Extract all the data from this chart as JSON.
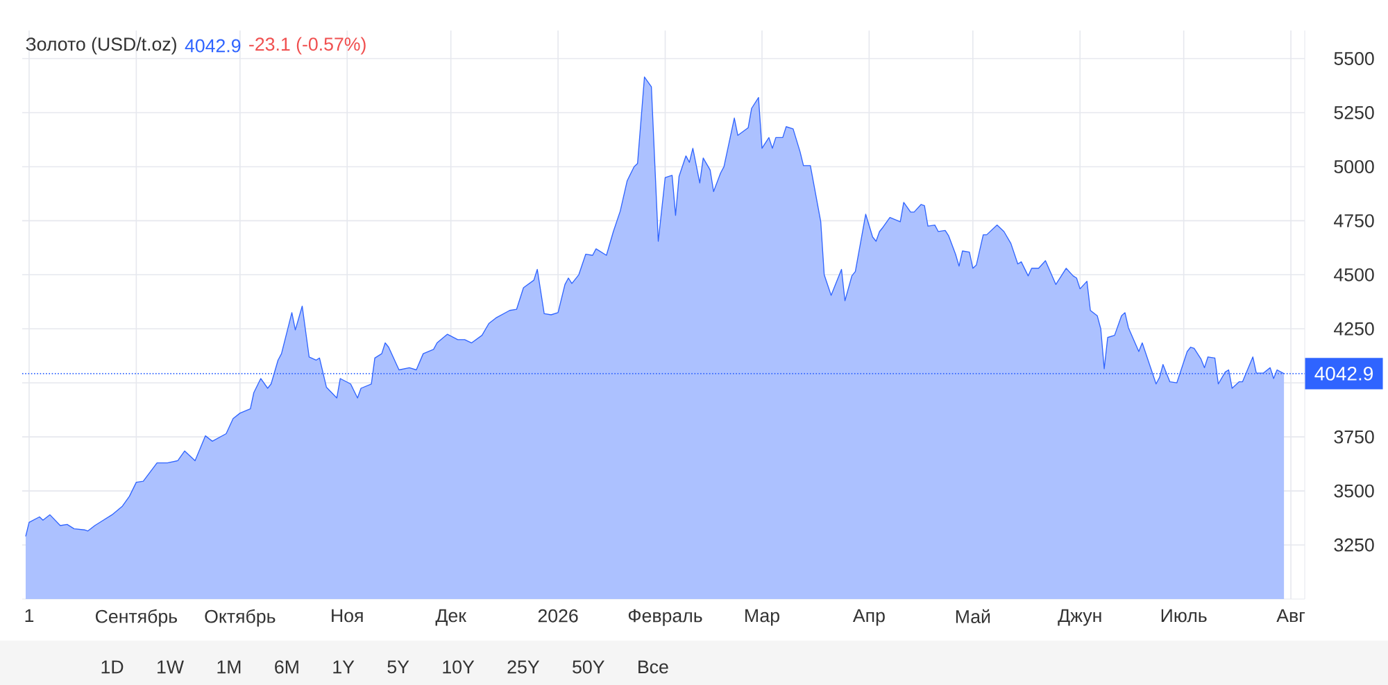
{
  "chart_data": {
    "type": "area",
    "title": "Золото (USD/t.oz)",
    "annotations": [
      "4042.9",
      "-23.1 (-0.57%)",
      "1D",
      "1W",
      "1M",
      "6M",
      "1Y",
      "5Y",
      "10Y",
      "25Y",
      "50Y",
      "Все"
    ],
    "x": [
      "2025-07-31",
      "2025-08-01",
      "2025-08-04",
      "2025-08-05",
      "2025-08-07",
      "2025-08-10",
      "2025-08-12",
      "2025-08-14",
      "2025-08-17",
      "2025-08-18",
      "2025-08-20",
      "2025-08-22",
      "2025-08-25",
      "2025-08-28",
      "2025-08-30",
      "2025-09-01",
      "2025-09-03",
      "2025-09-07",
      "2025-09-10",
      "2025-09-13",
      "2025-09-15",
      "2025-09-18",
      "2025-09-21",
      "2025-09-23",
      "2025-09-27",
      "2025-09-29",
      "2025-10-01",
      "2025-10-04",
      "2025-10-05",
      "2025-10-07",
      "2025-10-09",
      "2025-10-10",
      "2025-10-12",
      "2025-10-13",
      "2025-10-16",
      "2025-10-17",
      "2025-10-19",
      "2025-10-21",
      "2025-10-23",
      "2025-10-24",
      "2025-10-26",
      "2025-10-29",
      "2025-10-30",
      "2025-11-02",
      "2025-11-04",
      "2025-11-05",
      "2025-11-08",
      "2025-11-09",
      "2025-11-11",
      "2025-11-12",
      "2025-11-13",
      "2025-11-16",
      "2025-11-19",
      "2025-11-21",
      "2025-11-23",
      "2025-11-26",
      "2025-11-27",
      "2025-11-30",
      "2025-12-03",
      "2025-12-05",
      "2025-12-07",
      "2025-12-10",
      "2025-12-12",
      "2025-12-14",
      "2025-12-18",
      "2025-12-20",
      "2025-12-22",
      "2025-12-25",
      "2025-12-26",
      "2025-12-28",
      "2025-12-30",
      "2026-01-01",
      "2026-01-03",
      "2026-01-04",
      "2026-01-05",
      "2026-01-07",
      "2026-01-09",
      "2026-01-11",
      "2026-01-12",
      "2026-01-15",
      "2026-01-17",
      "2026-01-19",
      "2026-01-21",
      "2026-01-23",
      "2026-01-24",
      "2026-01-26",
      "2026-01-28",
      "2026-01-30",
      "2026-02-01",
      "2026-02-03",
      "2026-02-04",
      "2026-02-05",
      "2026-02-07",
      "2026-02-08",
      "2026-02-09",
      "2026-02-11",
      "2026-02-12",
      "2026-02-14",
      "2026-02-15",
      "2026-02-17",
      "2026-02-18",
      "2026-02-21",
      "2026-02-22",
      "2026-02-25",
      "2026-02-26",
      "2026-02-28",
      "2026-03-01",
      "2026-03-03",
      "2026-03-04",
      "2026-03-05",
      "2026-03-07",
      "2026-03-08",
      "2026-03-10",
      "2026-03-12",
      "2026-03-13",
      "2026-03-15",
      "2026-03-18",
      "2026-03-19",
      "2026-03-21",
      "2026-03-24",
      "2026-03-25",
      "2026-03-27",
      "2026-03-28",
      "2026-03-31",
      "2026-04-02",
      "2026-04-03",
      "2026-04-04",
      "2026-04-05",
      "2026-04-07",
      "2026-04-10",
      "2026-04-11",
      "2026-04-13",
      "2026-04-14",
      "2026-04-16",
      "2026-04-17",
      "2026-04-18",
      "2026-04-20",
      "2026-04-21",
      "2026-04-23",
      "2026-04-24",
      "2026-04-26",
      "2026-04-27",
      "2026-04-28",
      "2026-04-30",
      "2026-05-01",
      "2026-05-02",
      "2026-05-04",
      "2026-05-05",
      "2026-05-08",
      "2026-05-10",
      "2026-05-12",
      "2026-05-14",
      "2026-05-15",
      "2026-05-17",
      "2026-05-18",
      "2026-05-20",
      "2026-05-22",
      "2026-05-25",
      "2026-05-28",
      "2026-05-30",
      "2026-05-31",
      "2026-06-01",
      "2026-06-03",
      "2026-06-04",
      "2026-06-06",
      "2026-06-07",
      "2026-06-08",
      "2026-06-09",
      "2026-06-11",
      "2026-06-13",
      "2026-06-14",
      "2026-06-15",
      "2026-06-18",
      "2026-06-19",
      "2026-06-23",
      "2026-06-24",
      "2026-06-25",
      "2026-06-27",
      "2026-06-29",
      "2026-07-02",
      "2026-07-03",
      "2026-07-04",
      "2026-07-06",
      "2026-07-07",
      "2026-07-08",
      "2026-07-10",
      "2026-07-11",
      "2026-07-13",
      "2026-07-14",
      "2026-07-15",
      "2026-07-17",
      "2026-07-18",
      "2026-07-21",
      "2026-07-22",
      "2026-07-24",
      "2026-07-26",
      "2026-07-27",
      "2026-07-28",
      "2026-07-30"
    ],
    "values": [
      3290,
      3355,
      3380,
      3365,
      3390,
      3340,
      3345,
      3325,
      3320,
      3315,
      3340,
      3360,
      3390,
      3430,
      3475,
      3540,
      3545,
      3630,
      3630,
      3640,
      3685,
      3640,
      3755,
      3730,
      3765,
      3835,
      3860,
      3880,
      3955,
      4020,
      3975,
      3995,
      4105,
      4135,
      4325,
      4245,
      4355,
      4120,
      4105,
      4115,
      3980,
      3930,
      4020,
      3995,
      3930,
      3975,
      3995,
      4115,
      4135,
      4185,
      4165,
      4060,
      4070,
      4060,
      4135,
      4155,
      4185,
      4225,
      4200,
      4200,
      4185,
      4220,
      4275,
      4300,
      4335,
      4340,
      4440,
      4475,
      4525,
      4320,
      4315,
      4325,
      4455,
      4485,
      4460,
      4500,
      4595,
      4590,
      4620,
      4590,
      4700,
      4795,
      4935,
      5000,
      5015,
      5415,
      5370,
      4655,
      4950,
      4960,
      4775,
      4955,
      5050,
      5020,
      5085,
      4925,
      5040,
      4985,
      4885,
      4970,
      5000,
      5225,
      5145,
      5180,
      5270,
      5320,
      5085,
      5135,
      5085,
      5135,
      5135,
      5185,
      5175,
      5070,
      5005,
      5005,
      4745,
      4500,
      4405,
      4525,
      4380,
      4495,
      4515,
      4780,
      4675,
      4655,
      4700,
      4720,
      4765,
      4745,
      4835,
      4790,
      4790,
      4825,
      4820,
      4725,
      4730,
      4700,
      4705,
      4680,
      4595,
      4540,
      4610,
      4605,
      4530,
      4545,
      4685,
      4685,
      4730,
      4700,
      4645,
      4550,
      4560,
      4495,
      4530,
      4530,
      4565,
      4455,
      4530,
      4495,
      4485,
      4435,
      4470,
      4335,
      4310,
      4250,
      4065,
      4210,
      4220,
      4310,
      4325,
      4255,
      4145,
      4185,
      3995,
      4025,
      4085,
      4005,
      4000,
      4145,
      4165,
      4160,
      4110,
      4070,
      4120,
      4115,
      3995,
      4050,
      4060,
      3975,
      4005,
      4005,
      4120,
      4045,
      4045,
      4070,
      4020,
      4060,
      4042.9
    ],
    "color": "#2f64ff",
    "xlim": [
      "2025-07-30",
      "2026-08-05"
    ],
    "xticks": [
      {
        "value": "2025-08-01",
        "label": "1"
      },
      {
        "value": "2025-09-01",
        "label": "Сентябрь"
      },
      {
        "value": "2025-10-01",
        "label": "Октябрь"
      },
      {
        "value": "2025-11-01",
        "label": "Ноя"
      },
      {
        "value": "2025-12-01",
        "label": "Дек"
      },
      {
        "value": "2026-01-01",
        "label": "2026"
      },
      {
        "value": "2026-02-01",
        "label": "Февраль"
      },
      {
        "value": "2026-03-01",
        "label": "Мар"
      },
      {
        "value": "2026-04-01",
        "label": "Апр"
      },
      {
        "value": "2026-05-01",
        "label": "Май"
      },
      {
        "value": "2026-06-01",
        "label": "Джун"
      },
      {
        "value": "2026-07-01",
        "label": "Июль"
      },
      {
        "value": "2026-08-01",
        "label": "Авг"
      }
    ],
    "ylim": [
      3000,
      5630
    ],
    "yticks": [
      3250,
      3500,
      3750,
      {
        "value": 4000,
        "label": null
      },
      4250,
      4500,
      4750,
      5000,
      5250,
      5500
    ],
    "grid": true,
    "ref_lines": [
      {
        "axis": "y",
        "value": 4042.9,
        "label": "4042.9",
        "color": "#2f64ff",
        "line_style": "dotted"
      }
    ]
  }
}
